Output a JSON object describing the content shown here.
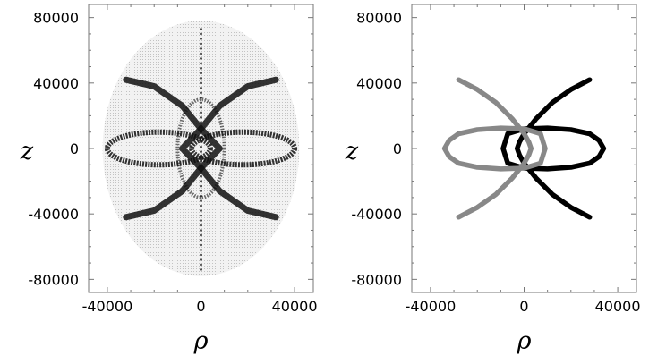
{
  "chart_data": [
    {
      "type": "density",
      "title": "",
      "xlabel": "ρ",
      "ylabel": "z",
      "xlim": [
        -48000,
        48000
      ],
      "ylim": [
        -88000,
        88000
      ],
      "xticks": [
        -40000,
        0,
        40000
      ],
      "yticks": [
        -80000,
        -40000,
        0,
        40000,
        80000
      ],
      "grid": false,
      "envelope": {
        "rho_half_width": 42000,
        "z_half_height": 78000
      },
      "features": [
        {
          "kind": "loop",
          "rho_center": -18000,
          "z_center": 0,
          "rho_half_width": 22000,
          "z_half_height": 10000
        },
        {
          "kind": "loop",
          "rho_center": 18000,
          "z_center": 0,
          "rho_half_width": 22000,
          "z_half_height": 10000
        },
        {
          "kind": "curve",
          "points": [
            [
              -32000,
              42000
            ],
            [
              -20000,
              38000
            ],
            [
              -8000,
              26000
            ],
            [
              0,
              12000
            ],
            [
              8000,
              0
            ],
            [
              0,
              -12000
            ],
            [
              -8000,
              -26000
            ],
            [
              -20000,
              -38000
            ],
            [
              -32000,
              -42000
            ]
          ]
        },
        {
          "kind": "curve",
          "points": [
            [
              32000,
              42000
            ],
            [
              20000,
              38000
            ],
            [
              8000,
              26000
            ],
            [
              0,
              12000
            ],
            [
              -8000,
              0
            ],
            [
              0,
              -12000
            ],
            [
              8000,
              -26000
            ],
            [
              20000,
              -38000
            ],
            [
              32000,
              -42000
            ]
          ]
        }
      ]
    },
    {
      "type": "line",
      "title": "",
      "xlabel": "ρ",
      "ylabel": "z",
      "xlim": [
        -48000,
        48000
      ],
      "ylim": [
        -88000,
        88000
      ],
      "xticks": [
        -40000,
        0,
        40000
      ],
      "yticks": [
        -80000,
        -40000,
        0,
        40000,
        80000
      ],
      "grid": false,
      "series": [
        {
          "color": "#000000",
          "x": [
            28000,
            20000,
            12000,
            5000,
            0,
            -2000,
            -3000,
            -2000,
            0,
            5000,
            12000,
            20000,
            28000
          ],
          "y": [
            42000,
            36000,
            28000,
            18000,
            9000,
            4000,
            0,
            -4000,
            -9000,
            -18000,
            -28000,
            -36000,
            -42000
          ]
        },
        {
          "color": "#000000",
          "x": [
            -7000,
            0,
            10000,
            20000,
            28000,
            32000,
            34000,
            32000,
            28000,
            20000,
            10000,
            0,
            -7000,
            -9000,
            -7000
          ],
          "y": [
            9000,
            12000,
            12500,
            11500,
            9000,
            5000,
            0,
            -5000,
            -9000,
            -11500,
            -12500,
            -12000,
            -9000,
            0,
            9000
          ]
        },
        {
          "color": "#888888",
          "x": [
            -28000,
            -20000,
            -12000,
            -5000,
            0,
            2000,
            3000,
            2000,
            0,
            -5000,
            -12000,
            -20000,
            -28000
          ],
          "y": [
            42000,
            36000,
            28000,
            18000,
            9000,
            4000,
            0,
            -4000,
            -9000,
            -18000,
            -28000,
            -36000,
            -42000
          ]
        },
        {
          "color": "#888888",
          "x": [
            7000,
            0,
            -10000,
            -20000,
            -28000,
            -32000,
            -34000,
            -32000,
            -28000,
            -20000,
            -10000,
            0,
            7000,
            9000,
            7000
          ],
          "y": [
            9000,
            12000,
            12500,
            11500,
            9000,
            5000,
            0,
            -5000,
            -9000,
            -11500,
            -12500,
            -12000,
            -9000,
            0,
            9000
          ]
        }
      ]
    }
  ]
}
